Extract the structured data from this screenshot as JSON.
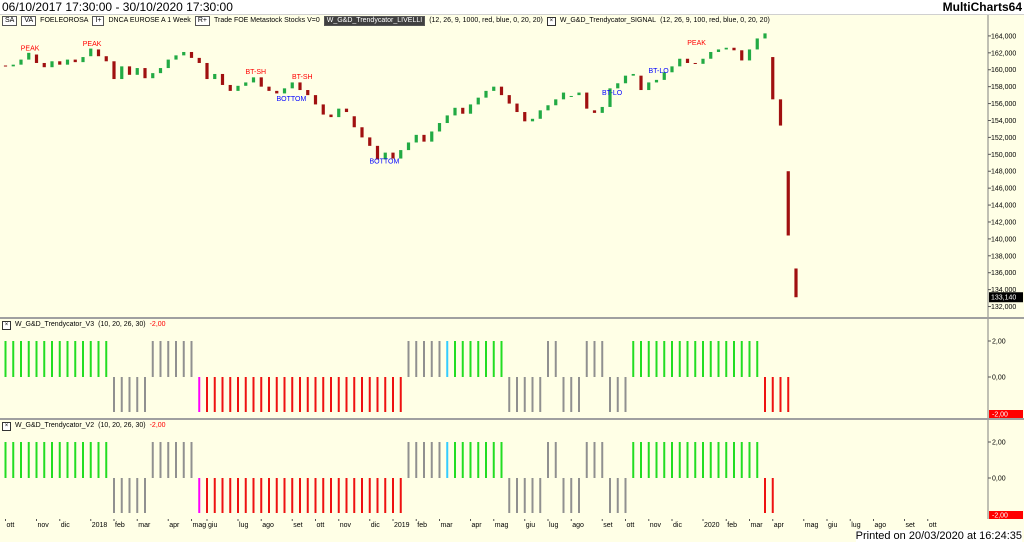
{
  "titlebar": {
    "range": "06/10/2017 17:30:00 - 30/10/2020 17:30:00",
    "brand": "MultiCharts64"
  },
  "main": {
    "legend": {
      "chip1": "SA",
      "chip2": "VA",
      "symbol": "FOELEOROSA",
      "chip3": "I+",
      "exchange": "DNCA EUROSE A  1 Week",
      "chip4": "R+",
      "trade": "Trade  FOE  Metastock  Stocks  V=0",
      "ind1": "W_G&D_Trendycator_LIVELLI",
      "ind1_params": "(12, 26, 9, 1000, red, blue, 0, 20, 20)",
      "ind2": "W_G&D_Trendycator_SIGNAL",
      "ind2_params": "(12, 26, 9, 100, red, blue, 0, 20, 20)"
    },
    "last_price": "133,140",
    "price_labels": [
      {
        "price": 164,
        "text": "164,000"
      },
      {
        "price": 162,
        "text": "162,000"
      },
      {
        "price": 160,
        "text": "160,000"
      },
      {
        "price": 158,
        "text": "158,000"
      },
      {
        "price": 156,
        "text": "156,000"
      },
      {
        "price": 154,
        "text": "154,000"
      },
      {
        "price": 152,
        "text": "152,000"
      },
      {
        "price": 150,
        "text": "150,000"
      },
      {
        "price": 148,
        "text": "148,000"
      },
      {
        "price": 146,
        "text": "146,000"
      },
      {
        "price": 144,
        "text": "144,000"
      },
      {
        "price": 142,
        "text": "142,000"
      },
      {
        "price": 140,
        "text": "140,000"
      },
      {
        "price": 138,
        "text": "138,000"
      },
      {
        "price": 136,
        "text": "136,000"
      },
      {
        "price": 134,
        "text": "134,000"
      },
      {
        "price": 132,
        "text": "132,000"
      }
    ],
    "annotations": [
      {
        "text": "PEAK",
        "bar": 3,
        "price": 162.3,
        "color": "#ff0000"
      },
      {
        "text": "PEAK",
        "bar": 11,
        "price": 162.8,
        "color": "#ff0000"
      },
      {
        "text": "BT-SH",
        "bar": 32,
        "price": 159.5,
        "color": "#ff0000"
      },
      {
        "text": "BT-SH",
        "bar": 38,
        "price": 158.9,
        "color": "#ff0000"
      },
      {
        "text": "BOTTOM",
        "bar": 36,
        "price": 156.3,
        "color": "#0000ff"
      },
      {
        "text": "BOTTOM",
        "bar": 48,
        "price": 148.9,
        "color": "#0000ff"
      },
      {
        "text": "BT-LO",
        "bar": 78,
        "price": 157.0,
        "color": "#0000ff"
      },
      {
        "text": "BT-LO",
        "bar": 84,
        "price": 159.6,
        "color": "#0000ff"
      },
      {
        "text": "PEAK",
        "bar": 89,
        "price": 162.9,
        "color": "#ff0000"
      }
    ]
  },
  "osc1": {
    "name": "W_G&D_Trendycator_V3",
    "params": "(10, 20, 26, 30)",
    "value": "-2,00",
    "labels": [
      {
        "v": 2,
        "text": "2,00"
      },
      {
        "v": 0,
        "text": "0,00"
      }
    ],
    "neg_label": "-2,00"
  },
  "osc2": {
    "name": "W_G&D_Trendycator_V2",
    "params": "(10, 20, 26, 30)",
    "value": "-2,00",
    "labels": [
      {
        "v": 2,
        "text": "2,00"
      },
      {
        "v": 0,
        "text": "0,00"
      }
    ],
    "neg_label": "-2,00"
  },
  "xaxis": [
    {
      "bar": 0,
      "text": "ott"
    },
    {
      "bar": 4,
      "text": "nov"
    },
    {
      "bar": 7,
      "text": "dic"
    },
    {
      "bar": 11,
      "text": "2018"
    },
    {
      "bar": 14,
      "text": "feb"
    },
    {
      "bar": 17,
      "text": "mar"
    },
    {
      "bar": 21,
      "text": "apr"
    },
    {
      "bar": 24,
      "text": "mag"
    },
    {
      "bar": 26,
      "text": "giu"
    },
    {
      "bar": 30,
      "text": "lug"
    },
    {
      "bar": 33,
      "text": "ago"
    },
    {
      "bar": 37,
      "text": "set"
    },
    {
      "bar": 40,
      "text": "ott"
    },
    {
      "bar": 43,
      "text": "nov"
    },
    {
      "bar": 47,
      "text": "dic"
    },
    {
      "bar": 50,
      "text": "2019"
    },
    {
      "bar": 53,
      "text": "feb"
    },
    {
      "bar": 56,
      "text": "mar"
    },
    {
      "bar": 60,
      "text": "apr"
    },
    {
      "bar": 63,
      "text": "mag"
    },
    {
      "bar": 67,
      "text": "giu"
    },
    {
      "bar": 70,
      "text": "lug"
    },
    {
      "bar": 73,
      "text": "ago"
    },
    {
      "bar": 77,
      "text": "set"
    },
    {
      "bar": 80,
      "text": "ott"
    },
    {
      "bar": 83,
      "text": "nov"
    },
    {
      "bar": 86,
      "text": "dic"
    },
    {
      "bar": 90,
      "text": "2020"
    },
    {
      "bar": 93,
      "text": "feb"
    },
    {
      "bar": 96,
      "text": "mar"
    },
    {
      "bar": 99,
      "text": "apr"
    },
    {
      "bar": 103,
      "text": "mag"
    },
    {
      "bar": 106,
      "text": "giu"
    },
    {
      "bar": 109,
      "text": "lug"
    },
    {
      "bar": 112,
      "text": "ago"
    },
    {
      "bar": 116,
      "text": "set"
    },
    {
      "bar": 119,
      "text": "ott"
    }
  ],
  "footer": "Printed on 20/03/2020 at 16:24:35",
  "chart_data": {
    "type": "candlestick",
    "bars_per_week": 1,
    "ylim": [
      131,
      166
    ],
    "candles": [
      [
        160.5,
        160.4
      ],
      [
        160.4,
        160.6
      ],
      [
        160.6,
        161.2
      ],
      [
        161.2,
        162.0
      ],
      [
        161.8,
        160.8
      ],
      [
        160.8,
        160.3
      ],
      [
        160.3,
        161.0
      ],
      [
        161.0,
        160.6
      ],
      [
        160.6,
        161.2
      ],
      [
        161.2,
        160.9
      ],
      [
        160.9,
        161.5
      ],
      [
        161.6,
        162.5
      ],
      [
        162.4,
        161.6
      ],
      [
        161.6,
        161.0
      ],
      [
        161.0,
        158.9
      ],
      [
        158.9,
        160.4
      ],
      [
        160.4,
        159.4
      ],
      [
        159.4,
        160.2
      ],
      [
        160.2,
        159.0
      ],
      [
        159.0,
        159.6
      ],
      [
        159.6,
        160.2
      ],
      [
        160.2,
        161.2
      ],
      [
        161.2,
        161.7
      ],
      [
        161.7,
        162.1
      ],
      [
        162.1,
        161.4
      ],
      [
        161.4,
        160.8
      ],
      [
        160.8,
        158.9
      ],
      [
        158.9,
        159.5
      ],
      [
        159.5,
        158.2
      ],
      [
        158.2,
        157.5
      ],
      [
        157.5,
        158.1
      ],
      [
        158.1,
        158.5
      ],
      [
        158.5,
        159.1
      ],
      [
        159.1,
        158.0
      ],
      [
        158.0,
        157.5
      ],
      [
        157.5,
        157.2
      ],
      [
        157.2,
        157.8
      ],
      [
        157.8,
        158.5
      ],
      [
        158.5,
        157.6
      ],
      [
        157.6,
        157.0
      ],
      [
        157.0,
        155.9
      ],
      [
        155.9,
        154.7
      ],
      [
        154.7,
        154.4
      ],
      [
        154.4,
        155.4
      ],
      [
        155.4,
        155.0
      ],
      [
        154.5,
        153.2
      ],
      [
        153.2,
        152.0
      ],
      [
        152.0,
        151.0
      ],
      [
        151.0,
        149.4
      ],
      [
        149.4,
        150.2
      ],
      [
        150.2,
        149.5
      ],
      [
        149.5,
        150.5
      ],
      [
        150.5,
        151.4
      ],
      [
        151.4,
        152.3
      ],
      [
        152.3,
        151.5
      ],
      [
        151.5,
        152.7
      ],
      [
        152.7,
        153.7
      ],
      [
        153.7,
        154.6
      ],
      [
        154.6,
        155.5
      ],
      [
        155.5,
        154.8
      ],
      [
        154.8,
        155.9
      ],
      [
        155.9,
        156.7
      ],
      [
        156.7,
        157.5
      ],
      [
        157.5,
        158.0
      ],
      [
        158.0,
        157.0
      ],
      [
        157.0,
        156.0
      ],
      [
        156.0,
        155.0
      ],
      [
        155.0,
        153.9
      ],
      [
        153.9,
        154.2
      ],
      [
        154.2,
        155.2
      ],
      [
        155.2,
        155.8
      ],
      [
        155.8,
        156.5
      ],
      [
        156.5,
        157.3
      ],
      [
        156.9,
        156.9
      ],
      [
        157.0,
        157.3
      ],
      [
        157.3,
        155.4
      ],
      [
        155.2,
        154.9
      ],
      [
        154.9,
        155.6
      ],
      [
        155.6,
        157.8
      ],
      [
        157.8,
        158.4
      ],
      [
        158.4,
        159.3
      ],
      [
        159.3,
        159.5
      ],
      [
        159.3,
        157.6
      ],
      [
        157.6,
        158.5
      ],
      [
        158.5,
        158.8
      ],
      [
        158.8,
        159.7
      ],
      [
        159.7,
        160.4
      ],
      [
        160.4,
        161.3
      ],
      [
        161.3,
        160.8
      ],
      [
        160.8,
        160.7
      ],
      [
        160.7,
        161.3
      ],
      [
        161.3,
        162.1
      ],
      [
        162.1,
        162.4
      ],
      [
        162.4,
        162.6
      ],
      [
        162.6,
        162.3
      ],
      [
        162.3,
        161.1
      ],
      [
        161.1,
        162.4
      ],
      [
        162.4,
        163.7
      ],
      [
        163.7,
        164.3
      ],
      [
        161.5,
        156.5
      ],
      [
        156.5,
        153.4
      ],
      [
        148.0,
        140.4
      ],
      [
        136.5,
        133.1
      ]
    ],
    "osc1_bars": [
      [
        1,
        "#22dd22",
        14
      ],
      [
        -1,
        "#909090",
        5
      ],
      [
        1,
        "#909090",
        6
      ],
      [
        -1,
        "#ff00ff",
        1
      ],
      [
        -1,
        "#ee1111",
        26
      ],
      [
        1,
        "#909090",
        5
      ],
      [
        1,
        "#33ccff",
        1
      ],
      [
        1,
        "#22dd22",
        7
      ],
      [
        -1,
        "#909090",
        5
      ],
      [
        1,
        "#909090",
        2
      ],
      [
        -1,
        "#909090",
        3
      ],
      [
        1,
        "#909090",
        3
      ],
      [
        -1,
        "#909090",
        3
      ],
      [
        1,
        "#22dd22",
        17
      ],
      [
        -1,
        "#ee1111",
        4
      ]
    ],
    "osc2_bars": [
      [
        1,
        "#22dd22",
        14
      ],
      [
        -1,
        "#909090",
        5
      ],
      [
        1,
        "#909090",
        6
      ],
      [
        -1,
        "#ff00ff",
        1
      ],
      [
        -1,
        "#ee1111",
        26
      ],
      [
        1,
        "#909090",
        5
      ],
      [
        1,
        "#33ccff",
        1
      ],
      [
        1,
        "#22dd22",
        7
      ],
      [
        -1,
        "#909090",
        5
      ],
      [
        1,
        "#909090",
        2
      ],
      [
        -1,
        "#909090",
        3
      ],
      [
        1,
        "#909090",
        3
      ],
      [
        -1,
        "#909090",
        3
      ],
      [
        1,
        "#22dd22",
        17
      ],
      [
        -1,
        "#ee1111",
        2
      ]
    ]
  }
}
